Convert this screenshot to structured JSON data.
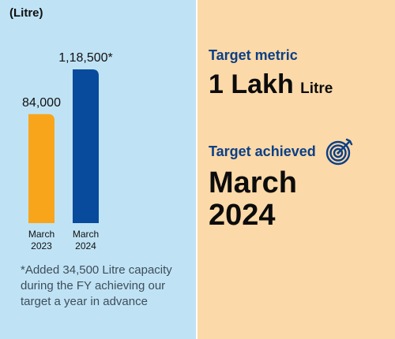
{
  "chart_data": {
    "type": "bar",
    "unit_label": "(Litre)",
    "categories": [
      "March\n2023",
      "March\n2024"
    ],
    "values": [
      84000,
      118500
    ],
    "value_labels": [
      "84,000",
      "1,18,500*"
    ],
    "colors": [
      "#f9a51b",
      "#084b9c"
    ],
    "ylim": [
      0,
      118500
    ]
  },
  "footnote": "*Added 34,500 Litre capacity during the FY achieving our target a year in advance",
  "metric": {
    "heading": "Target metric",
    "value": "1 Lakh",
    "unit": "Litre"
  },
  "achieved": {
    "heading": "Target achieved",
    "date_line1": "March",
    "date_line2": "2024",
    "icon": "target-icon"
  }
}
